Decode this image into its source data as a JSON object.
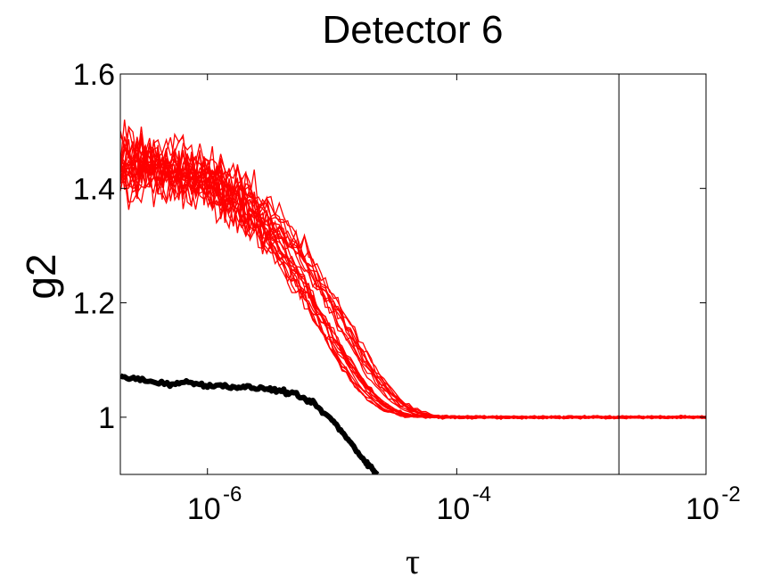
{
  "chart_data": {
    "type": "line",
    "title": "Detector 6",
    "xlabel": "τ",
    "ylabel": "g2",
    "xscale": "log",
    "xlim": [
      2e-07,
      0.01
    ],
    "ylim": [
      0.9,
      1.6
    ],
    "grid": false,
    "x_ticks": [
      {
        "value": 1e-06,
        "base": "10",
        "exp": "-6"
      },
      {
        "value": 0.0001,
        "base": "10",
        "exp": "-4"
      },
      {
        "value": 0.01,
        "base": "10",
        "exp": "-2"
      }
    ],
    "y_ticks": [
      {
        "value": 1.0,
        "label": "1"
      },
      {
        "value": 1.2,
        "label": "1.2"
      },
      {
        "value": 1.4,
        "label": "1.4"
      },
      {
        "value": 1.6,
        "label": "1.6"
      }
    ],
    "vline_x": 0.002,
    "colors": {
      "red_series": "#ff0000",
      "black_series": "#000000"
    },
    "red_model": {
      "count": 24,
      "baseline": 1.0,
      "plateau_range": [
        1.43,
        1.48
      ],
      "tau_c_range": [
        1.4e-05,
        3.2e-05
      ],
      "noise_early": 0.035,
      "noise_late": 0.003
    },
    "series": [
      {
        "color": "#000000",
        "x": [
          2e-07,
          3e-07,
          5e-07,
          7e-07,
          1e-06,
          1.5e-06,
          2e-06,
          3e-06,
          4e-06,
          5e-06,
          7e-06,
          1e-05,
          1.3e-05,
          1.7e-05,
          2e-05,
          2.3e-05
        ],
        "y": [
          1.072,
          1.065,
          1.058,
          1.061,
          1.056,
          1.054,
          1.052,
          1.05,
          1.045,
          1.04,
          1.025,
          0.995,
          0.965,
          0.932,
          0.915,
          0.9
        ]
      }
    ]
  }
}
